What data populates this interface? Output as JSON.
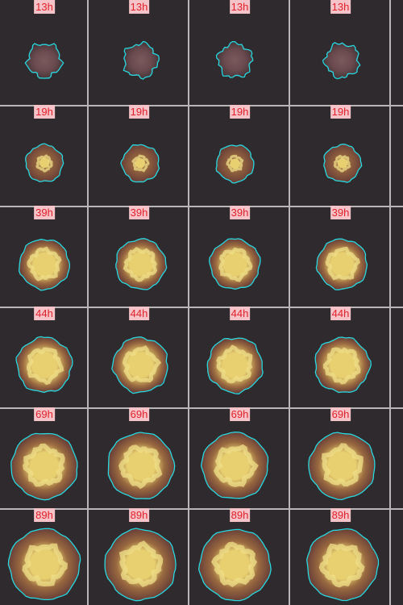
{
  "rows": [
    {
      "label": "13h",
      "stage": 0,
      "colonies": [
        "colony-r1-c1",
        "colony-r1-c2",
        "colony-r1-c3",
        "colony-r1-c4"
      ]
    },
    {
      "label": "19h",
      "stage": 1,
      "colonies": [
        "colony-r2-c1",
        "colony-r2-c2",
        "colony-r2-c3",
        "colony-r2-c4"
      ]
    },
    {
      "label": "39h",
      "stage": 2,
      "colonies": [
        "colony-r3-c1",
        "colony-r3-c2",
        "colony-r3-c3",
        "colony-r3-c4"
      ]
    },
    {
      "label": "44h",
      "stage": 3,
      "colonies": [
        "colony-r4-c1",
        "colony-r4-c2",
        "colony-r4-c3",
        "colony-r4-c4"
      ]
    },
    {
      "label": "69h",
      "stage": 4,
      "colonies": [
        "colony-r5-c1",
        "colony-r5-c2",
        "colony-r5-c3",
        "colony-r5-c4"
      ]
    },
    {
      "label": "89h",
      "stage": 5,
      "colonies": [
        "colony-r6-c1",
        "colony-r6-c2",
        "colony-r6-c3",
        "colony-r6-c4"
      ]
    }
  ],
  "colors": {
    "background": "#2f2a2d",
    "gridline": "#b9b6b8",
    "label_bg": "#f6c4c8",
    "label_text": "#e0202a",
    "contour": "#27d8e0",
    "colony_outer": "#6a4038",
    "colony_mid": "#9a6a40",
    "colony_core": "#e8d070"
  }
}
